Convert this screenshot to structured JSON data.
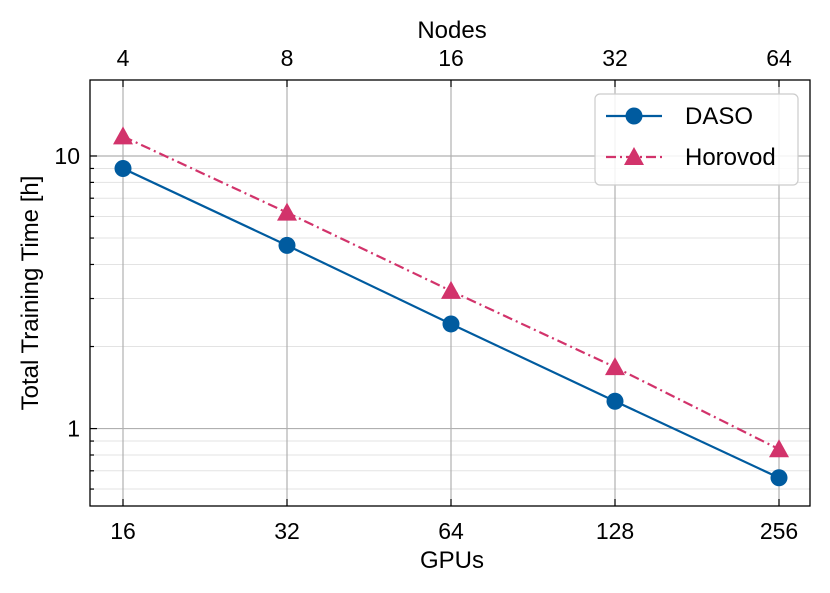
{
  "chart_data": {
    "type": "line",
    "title": "",
    "xlabel": "GPUs",
    "ylabel": "Total Training Time [h]",
    "top_xlabel": "Nodes",
    "x": [
      16,
      32,
      64,
      128,
      256
    ],
    "x_tick_labels": [
      "16",
      "32",
      "64",
      "128",
      "256"
    ],
    "top_x_tick_labels": [
      "4",
      "8",
      "16",
      "32",
      "64"
    ],
    "x_scale": "log2",
    "y_scale": "log",
    "ylim": [
      0.52,
      19
    ],
    "y_tick_labels": [
      "1",
      "10"
    ],
    "y_ticks": [
      1,
      10
    ],
    "grid": true,
    "legend_position": "top-right",
    "series": [
      {
        "name": "DASO",
        "values": [
          9.0,
          4.7,
          2.42,
          1.26,
          0.66
        ],
        "color": "#005b9f",
        "marker": "circle",
        "line_style": "solid"
      },
      {
        "name": "Horovod",
        "values": [
          11.8,
          6.2,
          3.2,
          1.68,
          0.84
        ],
        "color": "#d2336b",
        "marker": "triangle",
        "line_style": "dash-dot"
      }
    ]
  }
}
